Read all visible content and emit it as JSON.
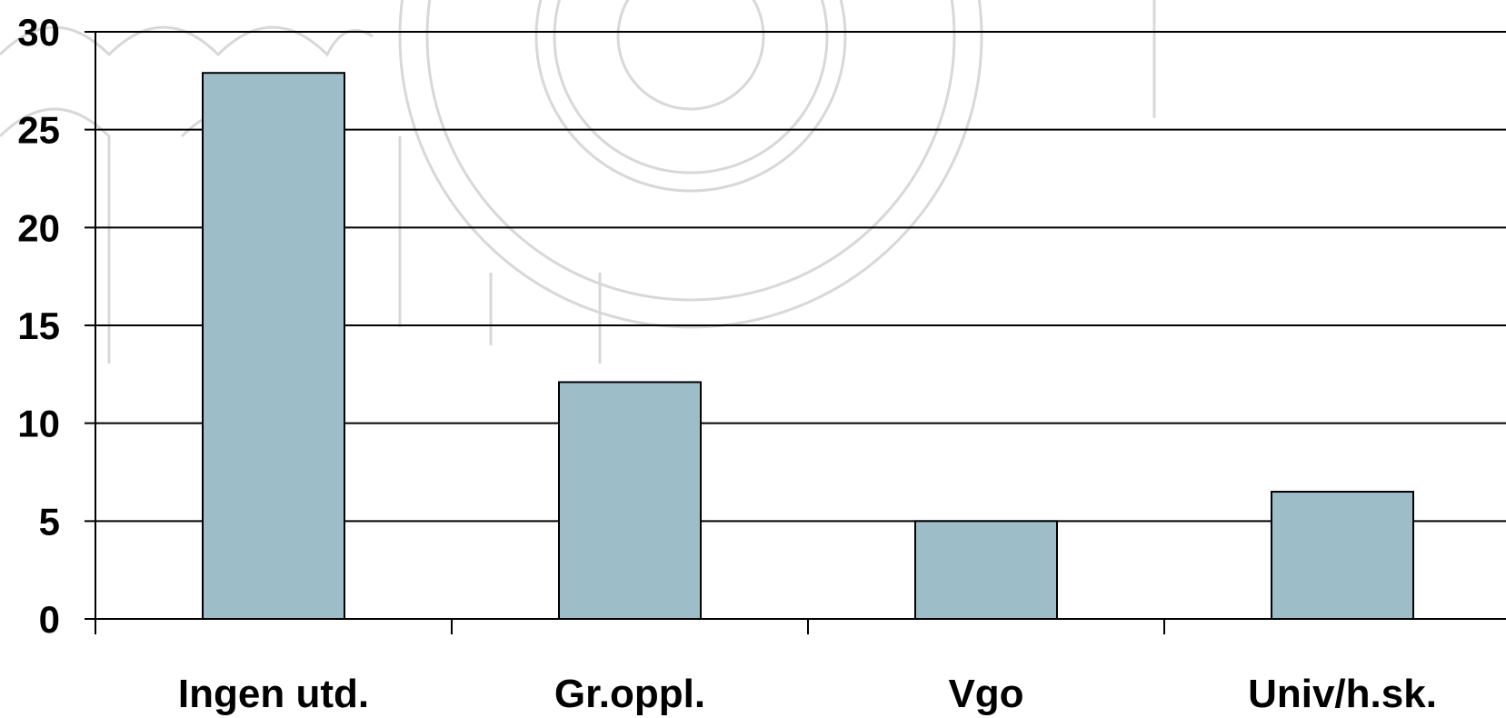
{
  "chart_data": {
    "type": "bar",
    "categories": [
      "Ingen utd.",
      "Gr.oppl.",
      "Vgo",
      "Univ/h.sk."
    ],
    "values": [
      27.9,
      12.1,
      5.0,
      6.5
    ],
    "title": "",
    "xlabel": "",
    "ylabel": "",
    "ylim": [
      0,
      30
    ],
    "yticks": [
      "0",
      "5",
      "10",
      "15",
      "20",
      "25",
      "30"
    ],
    "grid": true,
    "legend": "none",
    "bar_color": "#9dbdc9",
    "background_watermark": "faint seal/building line drawing"
  }
}
